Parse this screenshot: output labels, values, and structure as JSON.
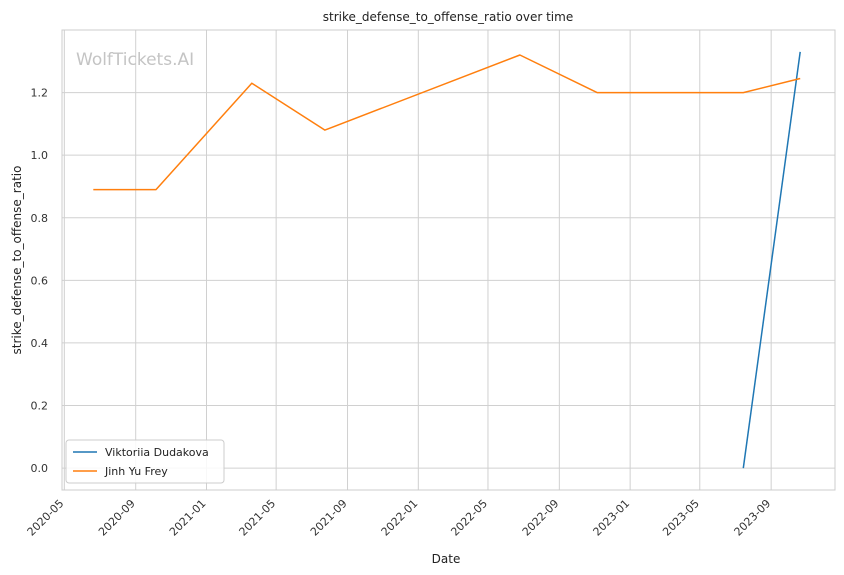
{
  "watermark": "WolfTickets.AI",
  "chart_data": {
    "type": "line",
    "title": "strike_defense_to_offense_ratio over time",
    "xlabel": "Date",
    "ylabel": "strike_defense_to_offense_ratio",
    "x_axis_type": "date",
    "xlim": [
      "2020-04-27",
      "2023-12-20"
    ],
    "ylim": [
      -0.07,
      1.4
    ],
    "x_ticks": [
      "2020-05",
      "2020-09",
      "2021-01",
      "2021-05",
      "2021-09",
      "2022-01",
      "2022-05",
      "2022-09",
      "2023-01",
      "2023-05",
      "2023-09"
    ],
    "y_ticks": [
      0.0,
      0.2,
      0.4,
      0.6,
      0.8,
      1.0,
      1.2
    ],
    "grid": true,
    "legend_position": "lower-left",
    "series": [
      {
        "name": "Viktoriia Dudakova",
        "color": "#1f77b4",
        "points": [
          {
            "x": "2023-07-15",
            "y": 0.0
          },
          {
            "x": "2023-10-21",
            "y": 1.33
          }
        ]
      },
      {
        "name": "Jinh Yu Frey",
        "color": "#ff7f0e",
        "points": [
          {
            "x": "2020-06-20",
            "y": 0.89
          },
          {
            "x": "2020-10-06",
            "y": 0.89
          },
          {
            "x": "2021-03-20",
            "y": 1.23
          },
          {
            "x": "2021-07-24",
            "y": 1.08
          },
          {
            "x": "2022-06-25",
            "y": 1.32
          },
          {
            "x": "2022-11-05",
            "y": 1.2
          },
          {
            "x": "2023-07-15",
            "y": 1.2
          },
          {
            "x": "2023-10-21",
            "y": 1.245
          }
        ]
      }
    ]
  }
}
